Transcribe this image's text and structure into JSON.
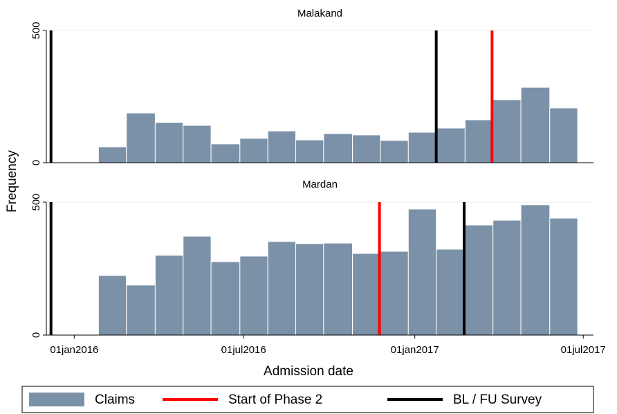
{
  "y_label": "Frequency",
  "x_label": "Admission date",
  "legend": [
    {
      "name": "Claims",
      "color": "#7b91a7"
    },
    {
      "name": "Start of Phase 2",
      "color": "#ff0000"
    },
    {
      "name": "BL / FU Survey",
      "color": "#000000"
    }
  ],
  "chart_data": [
    {
      "type": "histogram",
      "title": "Malakand",
      "bins": [
        20480,
        20510,
        20541,
        20571,
        20601,
        20632,
        20662,
        20692,
        20722,
        20753,
        20783,
        20813,
        20843,
        20874,
        20904,
        20934,
        20965,
        20995
      ],
      "values": [
        60,
        188,
        152,
        141,
        71,
        92,
        120,
        86,
        110,
        105,
        84,
        115,
        131,
        162,
        238,
        285,
        207
      ],
      "color": "#7b91a7",
      "vlines": [
        {
          "x": 20429,
          "legend": 2
        },
        {
          "x": 20843,
          "legend": 2
        },
        {
          "x": 20903,
          "legend": 1
        }
      ],
      "xlim": [
        20424,
        21012
      ],
      "ylim": [
        0,
        500
      ],
      "yticks": [
        0,
        500
      ],
      "grid": true
    },
    {
      "type": "histogram",
      "title": "Mardan",
      "bins": [
        20480,
        20510,
        20541,
        20571,
        20601,
        20632,
        20662,
        20692,
        20722,
        20753,
        20783,
        20813,
        20843,
        20874,
        20904,
        20934,
        20965,
        20995
      ],
      "values": [
        224,
        188,
        300,
        372,
        276,
        297,
        352,
        344,
        346,
        307,
        315,
        474,
        323,
        414,
        432,
        490,
        440
      ],
      "color": "#7b91a7",
      "vlines": [
        {
          "x": 20429,
          "legend": 2
        },
        {
          "x": 20782,
          "legend": 1
        },
        {
          "x": 20873,
          "legend": 2
        }
      ],
      "xlim": [
        20424,
        21012
      ],
      "ylim": [
        0,
        500
      ],
      "yticks": [
        0,
        500
      ],
      "grid": true,
      "xticks": [
        {
          "value": 20454,
          "label": "01jan2016"
        },
        {
          "value": 20636,
          "label": "01jul2016"
        },
        {
          "value": 20820,
          "label": "01jan2017"
        },
        {
          "value": 21001,
          "label": "01jul2017"
        }
      ]
    }
  ]
}
